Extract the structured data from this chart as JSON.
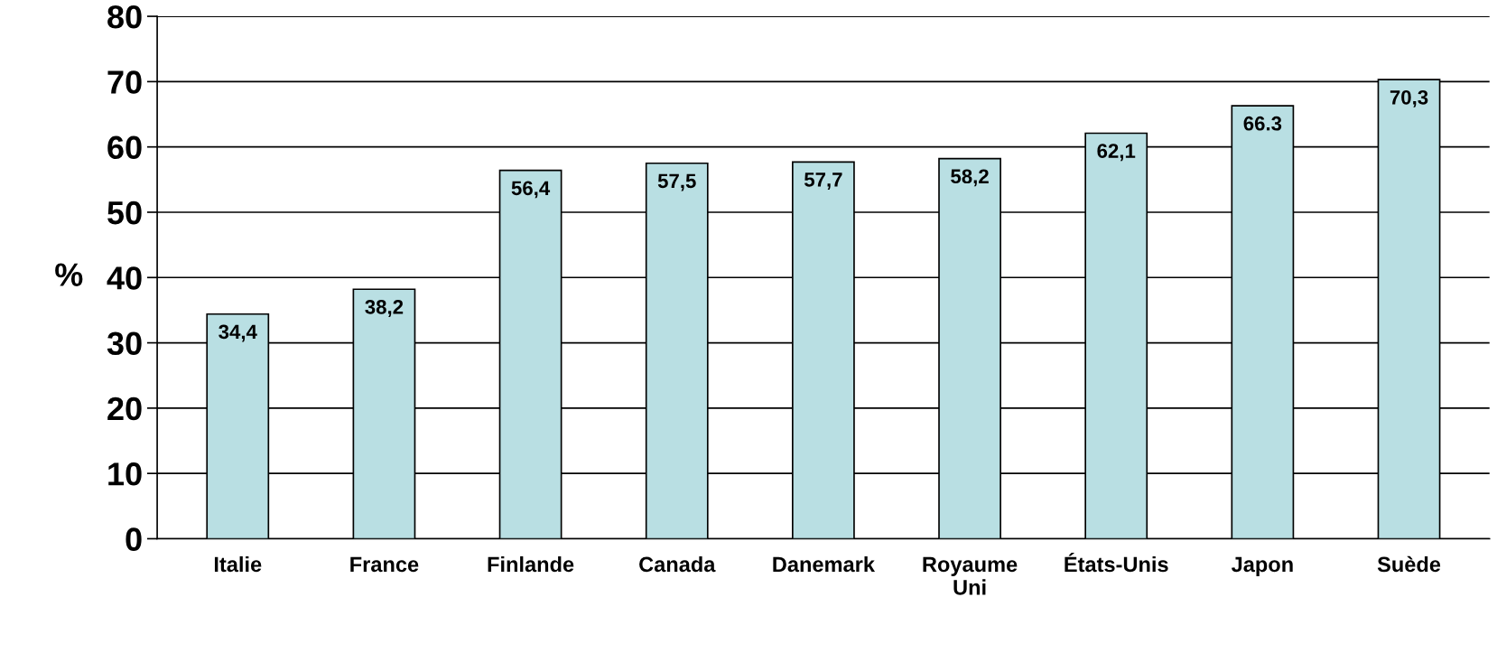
{
  "chart_data": {
    "type": "bar",
    "categories": [
      "Italie",
      "France",
      "Finlande",
      "Canada",
      "Danemark",
      "Royaume\nUni",
      "États-Unis",
      "Japon",
      "Suède"
    ],
    "values": [
      34.4,
      38.2,
      56.4,
      57.5,
      57.7,
      58.2,
      62.1,
      66.3,
      70.3
    ],
    "value_labels": [
      "34,4",
      "38,2",
      "56,4",
      "57,5",
      "57,7",
      "58,2",
      "62,1",
      "66.3",
      "70,3"
    ],
    "color": "#b9dfe3",
    "ylabel": "%",
    "ylim": [
      0,
      80
    ],
    "yticks": [
      0,
      10,
      20,
      30,
      40,
      50,
      60,
      70,
      80
    ],
    "grid": "y"
  }
}
